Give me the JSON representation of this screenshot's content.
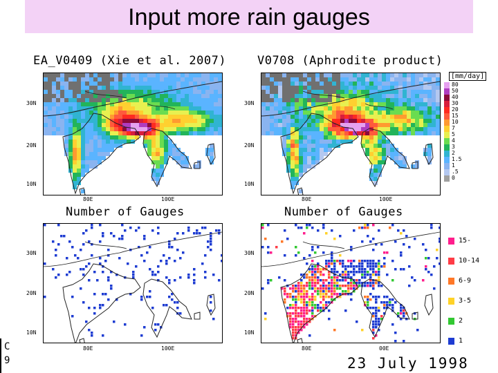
{
  "slide": {
    "title": "Input more rain gauges",
    "date": "23 July 1998",
    "cut_chars": [
      "C",
      "9"
    ]
  },
  "panels": {
    "top_left": {
      "header": "EA_V0409 (Xie et al. 2007)"
    },
    "top_right": {
      "header": "V0708 (Aphrodite product)"
    },
    "bottom_left": {
      "header": "Number of Gauges"
    },
    "bottom_right": {
      "header": "Number of Gauges"
    }
  },
  "axes": {
    "lat_labels": [
      "30N",
      "20N",
      "10N"
    ],
    "lon_labels": [
      "80E",
      "100E"
    ],
    "lon_labels_bottom_right": [
      "80E",
      "00E"
    ]
  },
  "rain_colorbar": {
    "unit": "[mm/day]",
    "labels": [
      "80",
      "50",
      "40",
      "30",
      "20",
      "15",
      "10",
      "7",
      "5",
      "4",
      "3",
      "2",
      "1.5",
      "1",
      ".5",
      "0"
    ],
    "colors": [
      "#e6a0f0",
      "#b03cc0",
      "#8c0a3a",
      "#d81e3c",
      "#ff2a20",
      "#ff5a3c",
      "#ff9a30",
      "#ffd030",
      "#e8f050",
      "#6adc50",
      "#22b45a",
      "#30b4d2",
      "#5ab4ff",
      "#8ab4f0",
      "#b4c8f0",
      "#a0a0a0"
    ]
  },
  "gauge_legend": {
    "items": [
      {
        "label": "15-",
        "color": "#ff1e8c"
      },
      {
        "label": "10-14",
        "color": "#ff3c46"
      },
      {
        "label": "6-9",
        "color": "#ff7828"
      },
      {
        "label": "3-5",
        "color": "#ffd228"
      },
      {
        "label": "2",
        "color": "#32c832"
      },
      {
        "label": "1",
        "color": "#1e3cd2"
      }
    ]
  }
}
